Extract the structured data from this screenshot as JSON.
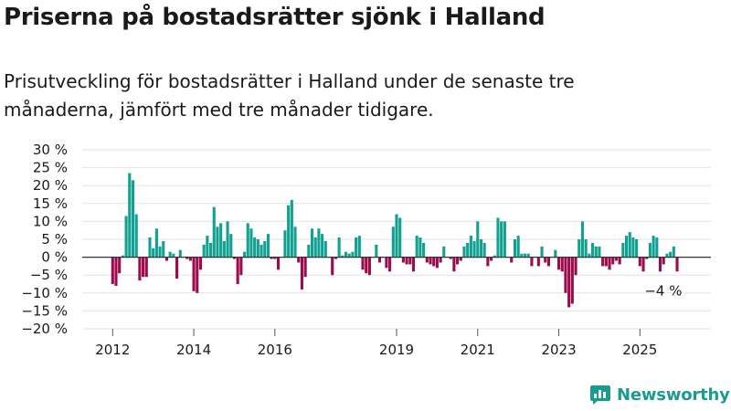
{
  "title": "Priserna på bostadsrätter sjönk i Halland",
  "subtitle": "Prisutveckling för bostadsrätter i Halland under de senaste tre månaderna, jämfört med tre månader tidigare.",
  "brand": "Newsworthy",
  "colors": {
    "positive": "#12a091",
    "negative": "#9c0c4d",
    "grid": "#e2e2e2",
    "brand": "#1a9c8c"
  },
  "chart_data": {
    "type": "bar",
    "ylim": [
      -20,
      30
    ],
    "yticks": [
      -20,
      -15,
      -10,
      -5,
      0,
      5,
      10,
      15,
      20,
      25,
      30
    ],
    "ytick_labels": [
      "−20 %",
      "−15 %",
      "−10 %",
      "−5 %",
      "0 %",
      "5 %",
      "10 %",
      "15 %",
      "20 %",
      "25 %",
      "30 %"
    ],
    "xlim": [
      2011.25,
      2026.75
    ],
    "xticks": [
      2012,
      2014,
      2016,
      2019,
      2021,
      2023,
      2025
    ],
    "xtick_labels": [
      "2012",
      "2014",
      "2016",
      "2019",
      "2021",
      "2023",
      "2025"
    ],
    "start_month": "2012-01",
    "grid": true,
    "annotation": {
      "text": "−4 %",
      "at": "2025-09"
    },
    "values": [
      -7.5,
      -8,
      -4.5,
      0.5,
      11.5,
      23.5,
      21.5,
      12,
      -6.5,
      -5.5,
      -5.5,
      5.5,
      2.5,
      8,
      3,
      4.5,
      -1,
      1.5,
      1,
      -6,
      2,
      0,
      -0.5,
      -1,
      -9.5,
      -10,
      -3.5,
      3.5,
      6,
      4,
      14,
      8.5,
      9.5,
      4.5,
      10,
      6.5,
      -0.5,
      -7.5,
      -5,
      1.5,
      9.5,
      8,
      5.5,
      5,
      3.5,
      4.5,
      6.5,
      -0.5,
      -0.5,
      -3.5,
      0,
      7.5,
      14.5,
      16,
      8.5,
      -1.5,
      -9,
      -5.5,
      3.5,
      8,
      5.5,
      8,
      6.5,
      4.5,
      0,
      -5,
      -0.5,
      5.5,
      0.5,
      1.5,
      1,
      1.5,
      5.5,
      6,
      -3.5,
      -4.5,
      -5,
      0,
      3.5,
      -1.5,
      0,
      -3,
      -4,
      8.5,
      12,
      11,
      -1.5,
      -2,
      -2,
      -4,
      6,
      5.5,
      4,
      -1.5,
      -2,
      -2.5,
      -3,
      -1.5,
      3,
      0,
      -0.5,
      -4,
      -2,
      -1,
      3,
      4,
      6,
      4.5,
      10,
      5,
      4,
      -2.5,
      -1,
      0.5,
      11,
      10,
      10,
      0,
      -1.5,
      5,
      6,
      1,
      1,
      1,
      -2.5,
      0,
      -2.5,
      3,
      -1.5,
      -2.5,
      0,
      2,
      -3.5,
      -4,
      -10,
      -14,
      -13,
      -5,
      5,
      10,
      5,
      1,
      4,
      3,
      3,
      -2.5,
      -2.5,
      -3.5,
      -2,
      -1,
      -2,
      4,
      6,
      7,
      5.5,
      5,
      -2.5,
      -4,
      -0.5,
      4,
      6,
      5.5,
      -4,
      -2,
      1,
      1.5,
      3,
      -4
    ]
  }
}
